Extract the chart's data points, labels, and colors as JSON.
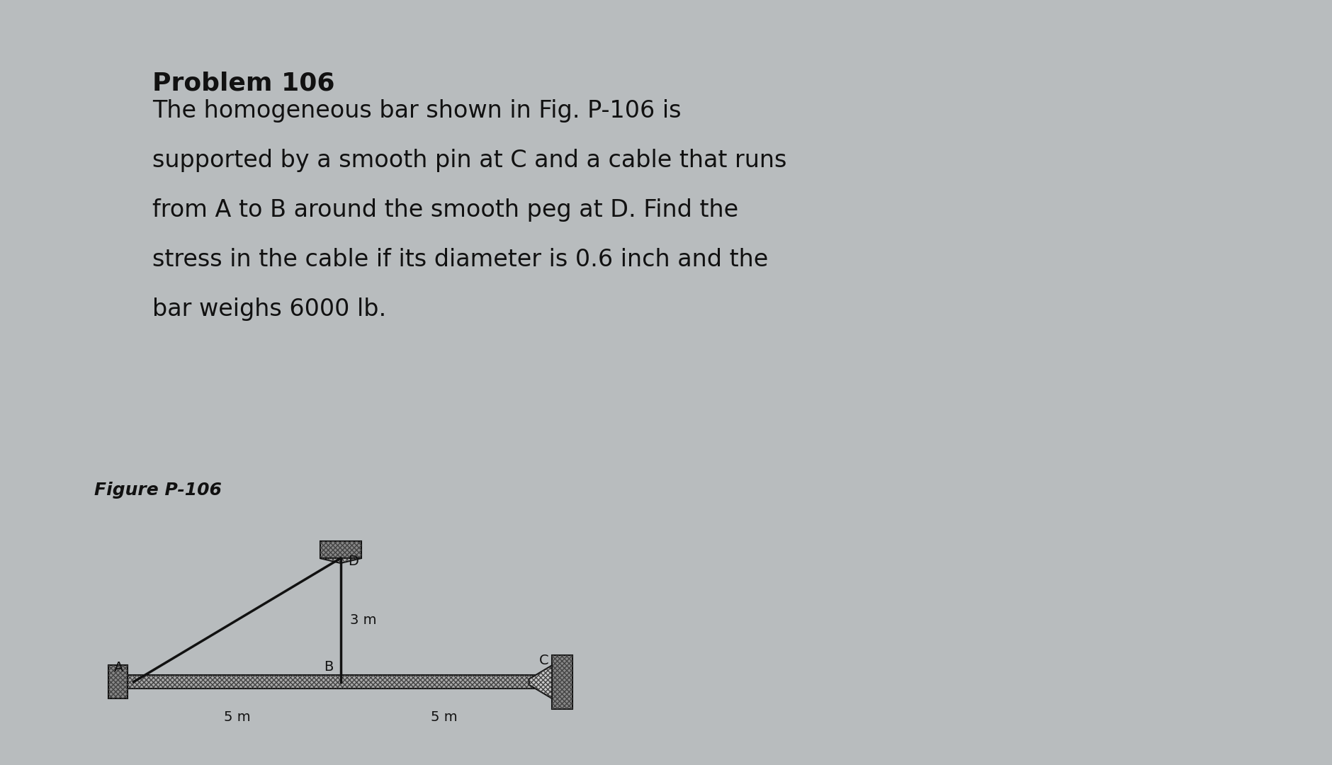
{
  "bg_color": "#b8bcbe",
  "title_bold": "Problem 106",
  "problem_text": [
    "The homogeneous bar shown in Fig. P-106 is",
    "supported by a smooth pin at C and a cable that runs",
    "from A to B around the smooth peg at D. Find the",
    "stress in the cable if its diameter is 0.6 inch and the",
    "bar weighs 6000 lb."
  ],
  "figure_label": "Figure P-106",
  "point_A": [
    0.0,
    0.0
  ],
  "point_B": [
    5.0,
    0.0
  ],
  "point_C": [
    10.0,
    0.0
  ],
  "point_D": [
    5.0,
    3.0
  ],
  "label_A": "A",
  "label_B": "B",
  "label_C": "C",
  "label_D": "D",
  "dim_AB": "5 m",
  "dim_BC": "5 m",
  "dim_DB": "3 m",
  "line_color": "#111111",
  "text_color": "#111111",
  "bar_face": "#aaaaaa",
  "hatch_color": "#444444",
  "wall_face": "#888888"
}
